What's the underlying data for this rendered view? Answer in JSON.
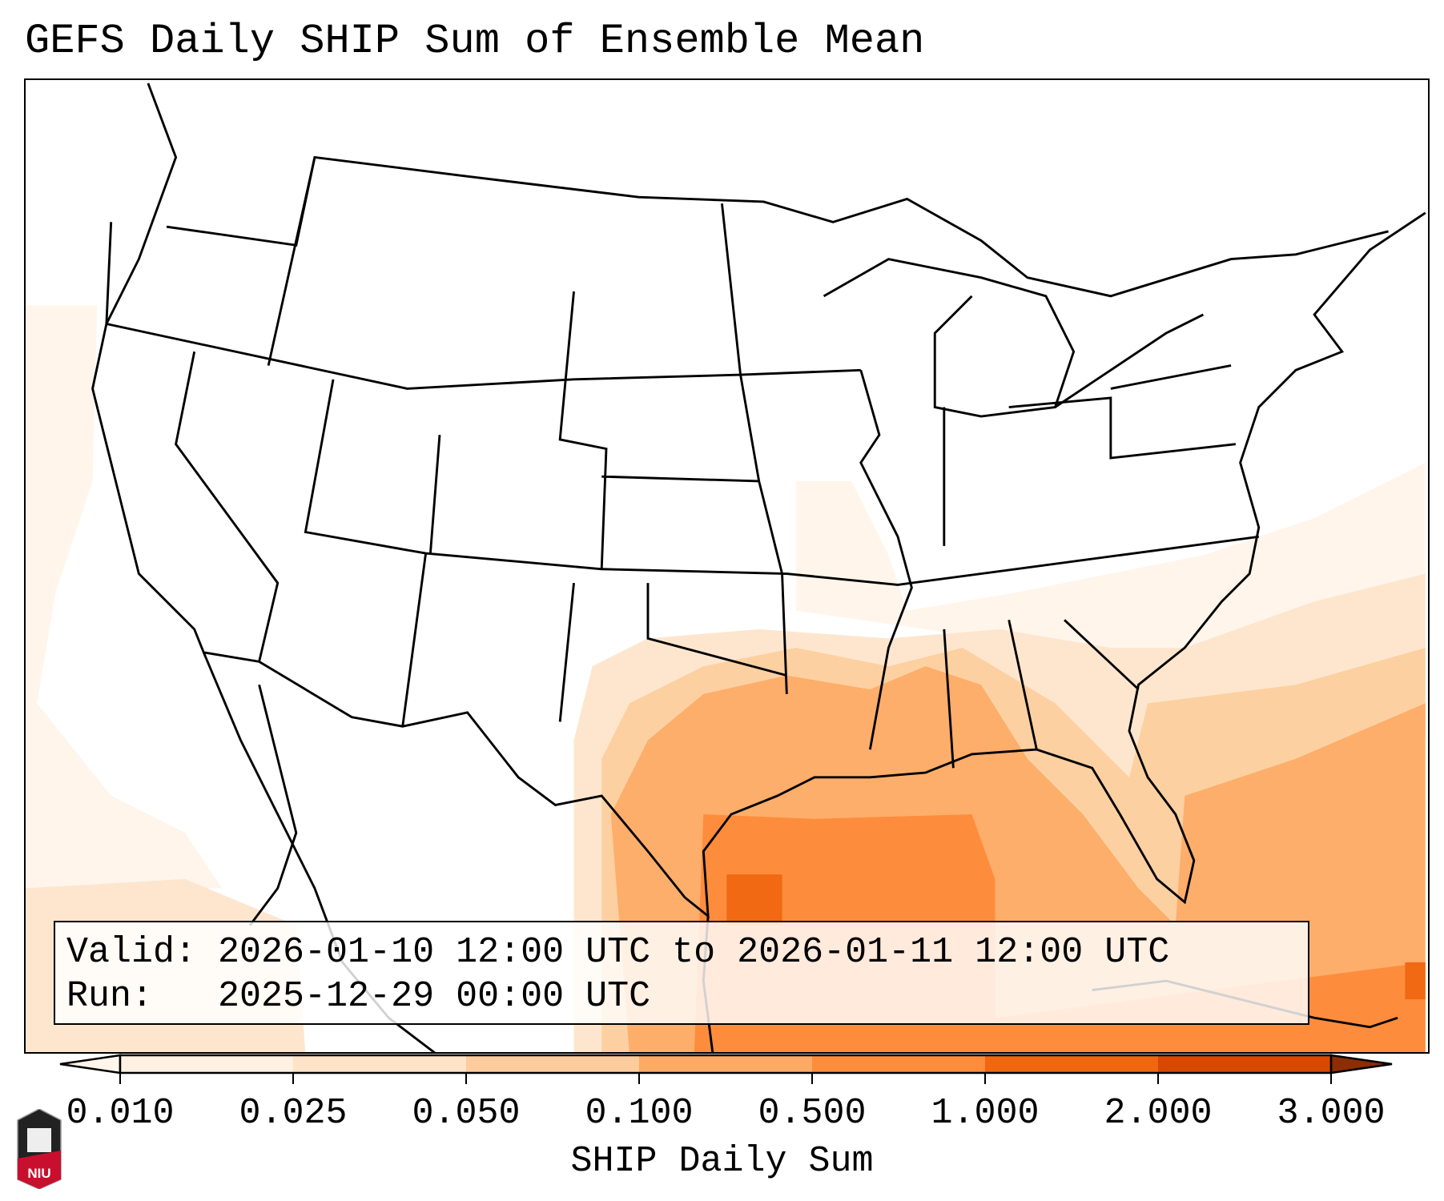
{
  "title": "GEFS Daily SHIP Sum of Ensemble Mean",
  "info": {
    "valid_line": "Valid: 2026-01-10 12:00 UTC to 2026-01-11 12:00 UTC",
    "run_line": "Run:   2025-12-29 00:00 UTC"
  },
  "colorbar": {
    "label": "SHIP Daily Sum",
    "ticks": [
      "0.010",
      "0.025",
      "0.050",
      "0.100",
      "0.500",
      "1.000",
      "2.000",
      "3.000"
    ],
    "colors": [
      "#fff1e3",
      "#fee3c8",
      "#fdcc9d",
      "#fdaa65",
      "#fd8c3b",
      "#f0670f",
      "#d84801"
    ],
    "under_color": "#fff5eb",
    "over_color": "#8c2d04"
  },
  "logo": {
    "text": "NIU"
  }
}
